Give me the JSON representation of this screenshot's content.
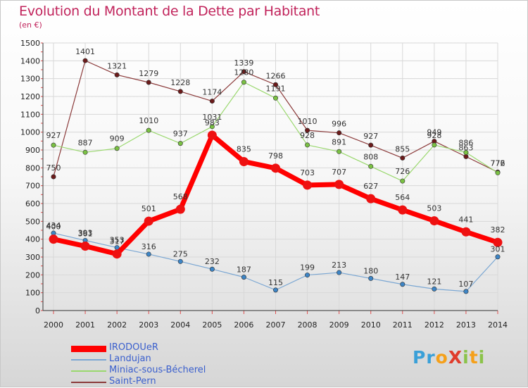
{
  "title": "Evolution du Montant de la Dette par Habitant",
  "subtitle": "(en €)",
  "logo": {
    "text": "ProXiti",
    "letter_colors": [
      "#3aa0d8",
      "#3aa0d8",
      "#f5a01a",
      "#e03c2c",
      "#8bc34a",
      "#f5a01a",
      "#8bc34a"
    ]
  },
  "chart_data": {
    "type": "line",
    "x": [
      2000,
      2001,
      2002,
      2003,
      2004,
      2005,
      2006,
      2007,
      2008,
      2009,
      2010,
      2011,
      2012,
      2013,
      2014
    ],
    "ylim": [
      0,
      1500
    ],
    "yticks": [
      0,
      100,
      200,
      300,
      400,
      500,
      600,
      700,
      800,
      900,
      1000,
      1100,
      1200,
      1300,
      1400,
      1500
    ],
    "grid": true,
    "legend_position": "bottom-left",
    "series": [
      {
        "name": "IRODOUeR",
        "color": "#ff0000",
        "marker_color": "#ee1111",
        "width": 7,
        "marker": 6.5,
        "values": [
          400,
          361,
          317,
          501,
          568,
          983,
          835,
          798,
          703,
          707,
          627,
          564,
          503,
          441,
          382
        ]
      },
      {
        "name": "Landujan",
        "color": "#7ba7d3",
        "marker_color": "#3d85c6",
        "width": 1.2,
        "marker": 3.2,
        "values": [
          434,
          393,
          353,
          316,
          275,
          232,
          187,
          115,
          199,
          213,
          180,
          147,
          121,
          107,
          301
        ]
      },
      {
        "name": "Miniac-sous-Bécherel",
        "color": "#9ad86e",
        "marker_color": "#7ac143",
        "width": 1.2,
        "marker": 3.2,
        "values": [
          927,
          887,
          909,
          1010,
          937,
          1031,
          1280,
          1191,
          928,
          891,
          808,
          726,
          928,
          886,
          772
        ]
      },
      {
        "name": "Saint-Pern",
        "color": "#8b3a3a",
        "marker_color": "#6b1a1a",
        "width": 1.2,
        "marker": 3.2,
        "values": [
          750,
          1401,
          1321,
          1279,
          1228,
          1174,
          1339,
          1266,
          1010,
          996,
          927,
          855,
          949,
          863,
          776
        ]
      }
    ]
  }
}
